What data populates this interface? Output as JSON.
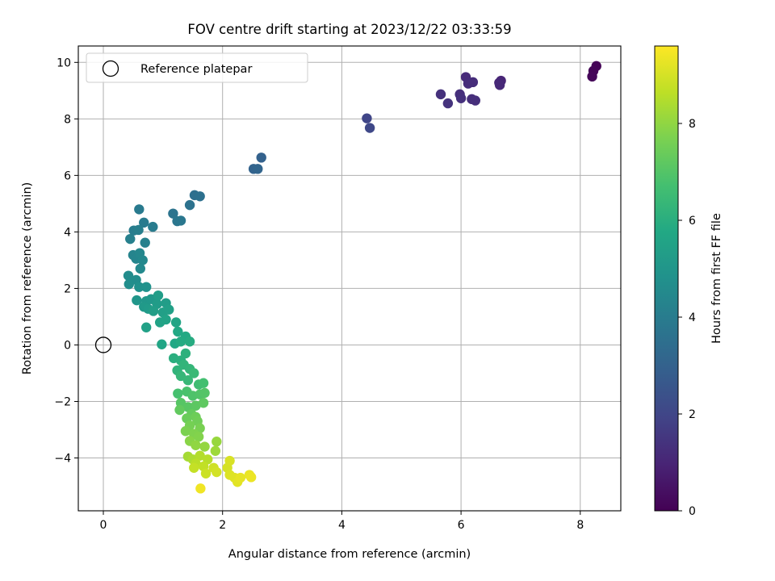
{
  "chart_data": {
    "type": "scatter",
    "title": "FOV centre drift starting at 2023/12/22 03:33:59",
    "xlabel": "Angular distance from reference (arcmin)",
    "ylabel": "Rotation from reference (arcmin)",
    "xlim": [
      -0.42,
      8.68
    ],
    "ylim": [
      -5.87,
      10.58
    ],
    "xticks": [
      0,
      2,
      4,
      6,
      8
    ],
    "yticks": [
      -4,
      -2,
      0,
      2,
      4,
      6,
      8,
      10
    ],
    "grid": true,
    "legend": {
      "position": "top-left",
      "entries": [
        "Reference platepar"
      ]
    },
    "reference_point": {
      "x": 0,
      "y": 0
    },
    "colorbar": {
      "label": "Hours from first FF file",
      "range": [
        0,
        9.6
      ],
      "ticks": [
        0,
        2,
        4,
        6,
        8
      ],
      "colormap": "viridis"
    },
    "series": [
      {
        "columns": [
          "x",
          "y",
          "hours"
        ],
        "points": [
          [
            8.27,
            9.87,
            0.05
          ],
          [
            8.22,
            9.7,
            0.1
          ],
          [
            8.2,
            9.5,
            0.15
          ],
          [
            6.67,
            9.35,
            1.0
          ],
          [
            6.64,
            9.28,
            1.05
          ],
          [
            6.65,
            9.2,
            1.1
          ],
          [
            6.08,
            9.48,
            1.15
          ],
          [
            6.12,
            9.25,
            1.2
          ],
          [
            6.2,
            9.3,
            1.22
          ],
          [
            6.18,
            8.7,
            1.25
          ],
          [
            6.24,
            8.65,
            1.28
          ],
          [
            5.98,
            8.87,
            1.3
          ],
          [
            6.0,
            8.73,
            1.32
          ],
          [
            5.66,
            8.87,
            1.35
          ],
          [
            5.78,
            8.55,
            1.4
          ],
          [
            4.42,
            8.02,
            2.0
          ],
          [
            4.47,
            7.68,
            2.05
          ],
          [
            2.65,
            6.63,
            3.0
          ],
          [
            2.52,
            6.23,
            3.05
          ],
          [
            2.59,
            6.23,
            3.1
          ],
          [
            1.53,
            5.3,
            3.5
          ],
          [
            1.62,
            5.26,
            3.55
          ],
          [
            1.45,
            4.95,
            3.6
          ],
          [
            1.17,
            4.65,
            3.7
          ],
          [
            1.24,
            4.38,
            3.75
          ],
          [
            1.3,
            4.4,
            3.8
          ],
          [
            0.6,
            4.8,
            3.9
          ],
          [
            0.68,
            4.33,
            3.95
          ],
          [
            0.83,
            4.18,
            4.0
          ],
          [
            0.51,
            4.05,
            4.05
          ],
          [
            0.59,
            4.07,
            4.1
          ],
          [
            0.45,
            3.75,
            4.15
          ],
          [
            0.7,
            3.62,
            4.2
          ],
          [
            0.5,
            3.18,
            4.3
          ],
          [
            0.55,
            3.05,
            4.35
          ],
          [
            0.61,
            3.25,
            4.4
          ],
          [
            0.66,
            3.0,
            4.45
          ],
          [
            0.62,
            2.7,
            4.5
          ],
          [
            0.42,
            2.45,
            4.6
          ],
          [
            0.55,
            2.3,
            4.65
          ],
          [
            0.43,
            2.15,
            4.7
          ],
          [
            0.6,
            2.05,
            4.8
          ],
          [
            0.72,
            2.05,
            4.85
          ],
          [
            0.56,
            1.58,
            5.0
          ],
          [
            0.72,
            1.55,
            5.05
          ],
          [
            0.8,
            1.62,
            5.1
          ],
          [
            0.68,
            1.35,
            5.15
          ],
          [
            0.75,
            1.28,
            5.2
          ],
          [
            0.9,
            1.45,
            5.25
          ],
          [
            0.92,
            1.75,
            5.3
          ],
          [
            1.05,
            1.48,
            5.3
          ],
          [
            0.84,
            1.2,
            5.35
          ],
          [
            1.0,
            1.15,
            5.4
          ],
          [
            1.1,
            1.25,
            5.42
          ],
          [
            0.72,
            0.62,
            5.45
          ],
          [
            0.95,
            0.8,
            5.5
          ],
          [
            1.05,
            0.9,
            5.55
          ],
          [
            1.22,
            0.8,
            5.6
          ],
          [
            0.98,
            0.02,
            5.65
          ],
          [
            1.2,
            0.05,
            5.7
          ],
          [
            1.25,
            0.47,
            5.75
          ],
          [
            1.38,
            0.3,
            5.8
          ],
          [
            1.3,
            0.12,
            5.85
          ],
          [
            1.45,
            0.12,
            5.9
          ],
          [
            1.18,
            -0.47,
            6.0
          ],
          [
            1.3,
            -0.55,
            6.05
          ],
          [
            1.38,
            -0.3,
            6.1
          ],
          [
            1.24,
            -0.9,
            6.2
          ],
          [
            1.35,
            -0.7,
            6.25
          ],
          [
            1.45,
            -0.85,
            6.3
          ],
          [
            1.3,
            -1.1,
            6.35
          ],
          [
            1.42,
            -1.25,
            6.4
          ],
          [
            1.52,
            -1.0,
            6.45
          ],
          [
            1.6,
            -1.4,
            6.6
          ],
          [
            1.68,
            -1.35,
            6.7
          ],
          [
            1.25,
            -1.72,
            6.75
          ],
          [
            1.4,
            -1.65,
            6.8
          ],
          [
            1.5,
            -1.8,
            6.9
          ],
          [
            1.62,
            -1.75,
            6.95
          ],
          [
            1.7,
            -1.7,
            7.0
          ],
          [
            1.3,
            -2.05,
            7.05
          ],
          [
            1.42,
            -2.2,
            7.1
          ],
          [
            1.55,
            -2.15,
            7.15
          ],
          [
            1.68,
            -2.05,
            7.2
          ],
          [
            1.28,
            -2.3,
            7.25
          ],
          [
            1.48,
            -2.45,
            7.3
          ],
          [
            1.4,
            -2.6,
            7.4
          ],
          [
            1.55,
            -2.55,
            7.45
          ],
          [
            1.58,
            -2.7,
            7.5
          ],
          [
            1.45,
            -2.85,
            7.6
          ],
          [
            1.62,
            -2.95,
            7.65
          ],
          [
            1.38,
            -3.05,
            7.7
          ],
          [
            1.52,
            -3.15,
            7.75
          ],
          [
            1.6,
            -3.25,
            7.8
          ],
          [
            1.45,
            -3.4,
            7.9
          ],
          [
            1.55,
            -3.55,
            8.0
          ],
          [
            1.7,
            -3.6,
            8.05
          ],
          [
            1.9,
            -3.42,
            8.1
          ],
          [
            1.88,
            -3.75,
            8.2
          ],
          [
            1.42,
            -3.95,
            8.3
          ],
          [
            1.5,
            -4.05,
            8.4
          ],
          [
            1.62,
            -3.92,
            8.5
          ],
          [
            1.75,
            -4.05,
            8.55
          ],
          [
            1.55,
            -4.2,
            8.6
          ],
          [
            1.68,
            -4.3,
            8.7
          ],
          [
            1.52,
            -4.35,
            8.75
          ],
          [
            1.72,
            -4.55,
            8.85
          ],
          [
            1.85,
            -4.35,
            8.9
          ],
          [
            1.9,
            -4.5,
            8.95
          ],
          [
            2.08,
            -4.35,
            9.0
          ],
          [
            2.12,
            -4.1,
            9.05
          ],
          [
            2.12,
            -4.6,
            9.1
          ],
          [
            2.2,
            -4.7,
            9.15
          ],
          [
            2.25,
            -4.85,
            9.2
          ],
          [
            2.3,
            -4.7,
            9.25
          ],
          [
            2.45,
            -4.6,
            9.3
          ],
          [
            2.48,
            -4.68,
            9.35
          ],
          [
            1.63,
            -5.08,
            9.4
          ]
        ]
      }
    ]
  },
  "plot_area": {
    "background": "#ffffff",
    "grid_color": "#b0b0b0"
  }
}
